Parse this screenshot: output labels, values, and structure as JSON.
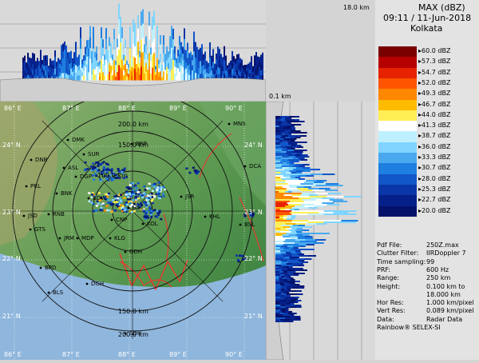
{
  "header": {
    "product": "MAX (dBZ)",
    "datetime": "09:11 / 11-Jun-2018",
    "station": "Kolkata",
    "top_height": "18.0 km",
    "bottom_height": "0.1 km"
  },
  "legend": {
    "levels": [
      {
        "label": "60.0 dBZ",
        "color": "#7a0000"
      },
      {
        "label": "57.3 dBZ",
        "color": "#b60000"
      },
      {
        "label": "54.7 dBZ",
        "color": "#e62200"
      },
      {
        "label": "52.0 dBZ",
        "color": "#ff5500"
      },
      {
        "label": "49.3 dBZ",
        "color": "#ff8800"
      },
      {
        "label": "46.7 dBZ",
        "color": "#ffbb00"
      },
      {
        "label": "44.0 dBZ",
        "color": "#ffee55"
      },
      {
        "label": "41.3 dBZ",
        "color": "#ffffff"
      },
      {
        "label": "38.7 dBZ",
        "color": "#bff0ff"
      },
      {
        "label": "36.0 dBZ",
        "color": "#80d4ff"
      },
      {
        "label": "33.3 dBZ",
        "color": "#49a8ee"
      },
      {
        "label": "30.7 dBZ",
        "color": "#1e7fe0"
      },
      {
        "label": "28.0 dBZ",
        "color": "#1256c8"
      },
      {
        "label": "25.3 dBZ",
        "color": "#0a36a8"
      },
      {
        "label": "22.7 dBZ",
        "color": "#06208a"
      },
      {
        "label": "20.0 dBZ",
        "color": "#04126a"
      }
    ]
  },
  "info": [
    {
      "key": "Pdf File:",
      "value": "250Z.max"
    },
    {
      "key": "Clutter Filter:",
      "value": "IIRDoppler 7"
    },
    {
      "key": "Time sampling:",
      "value": "99"
    },
    {
      "key": "PRF:",
      "value": "600 Hz"
    },
    {
      "key": "Range:",
      "value": "250 km"
    },
    {
      "key": "Height:",
      "value": "0.100 km to"
    },
    {
      "key": "",
      "value": "18.000 km"
    },
    {
      "key": "Hor Res:",
      "value": "1.000 km/pixel"
    },
    {
      "key": "Vert Res:",
      "value": "0.089 km/pixel"
    },
    {
      "key": "Data:",
      "value": "Radar Data"
    },
    {
      "key": "Rainbow® SELEX-SI",
      "value": ""
    }
  ],
  "map": {
    "longitudes_top": [
      "86° E",
      "87° E",
      "88° E",
      "89° E",
      "90° E"
    ],
    "longitudes_bottom": [
      "86° E",
      "87° E",
      "88° E",
      "89° E",
      "90° E"
    ],
    "latitudes_left": [
      "24° N",
      "23° N",
      "22° N",
      "21° N"
    ],
    "latitudes_right": [
      "24° N",
      "23° N",
      "22° N",
      "21° N"
    ],
    "range_labels": [
      "200.0 km",
      "150.0 km",
      "100.0 km",
      "150.0 km",
      "200.0 km"
    ],
    "cities": [
      "DMK",
      "BRP",
      "MNS",
      "DNB",
      "SUR",
      "ASL",
      "DGP",
      "DCA",
      "PRL",
      "BNK",
      "BDW",
      "JSR",
      "RNB",
      "KHL",
      "BSL",
      "JSD",
      "GTS",
      "JRM",
      "MDP",
      "KLG",
      "BPD",
      "ODH",
      "DGH",
      "BLS",
      "SDH",
      "HAL",
      "KOL",
      "CNP"
    ]
  },
  "colors": {
    "background": "#d4d4d4",
    "land": "#6a9a5e",
    "sea": "#8fb6dc",
    "border": "#ff2a2a"
  }
}
